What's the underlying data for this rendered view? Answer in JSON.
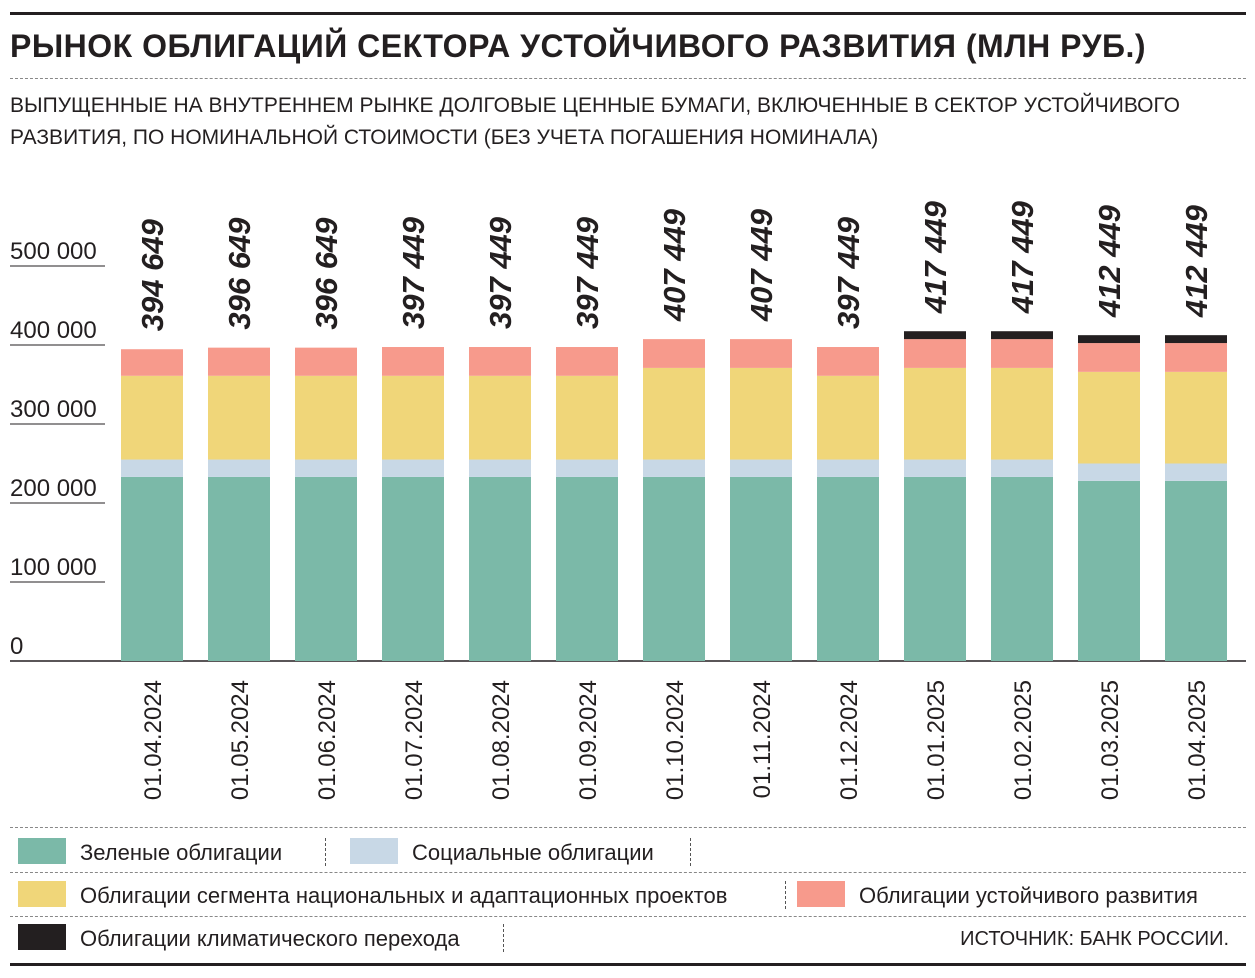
{
  "title": "РЫНОК ОБЛИГАЦИЙ СЕКТОРА УСТОЙЧИВОГО РАЗВИТИЯ (МЛН РУБ.)",
  "subtitle": "ВЫПУЩЕННЫЕ НА ВНУТРЕННЕМ РЫНКЕ ДОЛГОВЫЕ ЦЕННЫЕ БУМАГИ, ВКЛЮЧЕННЫЕ В СЕКТОР УСТОЙЧИВОГО РАЗВИТИЯ, ПО НОМИНАЛЬНОЙ СТОИМОСТИ (БЕЗ УЧЕТА ПОГАШЕНИЯ НОМИНАЛА)",
  "source": "ИСТОЧНИК: БАНК РОССИИ.",
  "chart_data": {
    "type": "bar",
    "stacked": true,
    "categories": [
      "01.04.2024",
      "01.05.2024",
      "01.06.2024",
      "01.07.2024",
      "01.08.2024",
      "01.09.2024",
      "01.10.2024",
      "01.11.2024",
      "01.12.2024",
      "01.01.2025",
      "01.02.2025",
      "01.03.2025",
      "01.04.2025"
    ],
    "totals_labels": [
      "394 649",
      "396 649",
      "396 649",
      "397 449",
      "397 449",
      "397 449",
      "407 449",
      "407 449",
      "397 449",
      "417 449",
      "417 449",
      "412 449",
      "412 449"
    ],
    "series": [
      {
        "name": "Зеленые облигации",
        "color": "#7bb9a8",
        "values": [
          233000,
          233000,
          233000,
          233000,
          233000,
          233000,
          233000,
          233000,
          233000,
          233000,
          233000,
          228000,
          228000
        ]
      },
      {
        "name": "Социальные облигации",
        "color": "#c8d8e6",
        "values": [
          22000,
          22000,
          22000,
          22000,
          22000,
          22000,
          22000,
          22000,
          22000,
          22000,
          22000,
          22000,
          22000
        ]
      },
      {
        "name": "Облигации сегмента национальных и адаптационных проектов",
        "color": "#f0d679",
        "values": [
          106000,
          106000,
          106000,
          106000,
          106000,
          106000,
          116000,
          116000,
          106000,
          116000,
          116000,
          116000,
          116000
        ]
      },
      {
        "name": "Облигации устойчивого развития",
        "color": "#f79a8c",
        "values": [
          33649,
          35649,
          35649,
          36449,
          36449,
          36449,
          36449,
          36449,
          36449,
          36449,
          36449,
          36449,
          36449
        ]
      },
      {
        "name": "Облигации климатического перехода",
        "color": "#231f20",
        "values": [
          0,
          0,
          0,
          0,
          0,
          0,
          0,
          0,
          0,
          10000,
          10000,
          10000,
          10000
        ]
      }
    ],
    "yticks": [
      "0",
      "100 000",
      "200 000",
      "300 000",
      "400 000",
      "500 000"
    ],
    "ylim": [
      0,
      520000
    ],
    "grid": false,
    "legend_position": "bottom"
  }
}
